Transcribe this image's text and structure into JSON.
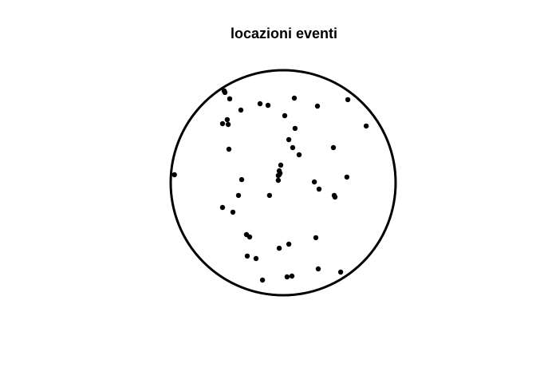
{
  "chart_data": {
    "type": "scatter",
    "title": "locazioni eventi",
    "xlabel": "",
    "ylabel": "",
    "grid": false,
    "axes": false,
    "window": {
      "shape": "circle",
      "center": [
        0,
        0
      ],
      "radius": 1
    },
    "xlim": [
      -1,
      1
    ],
    "ylim": [
      -1,
      1
    ],
    "point_color": "#000000",
    "outline_color": "#000000",
    "points": [
      {
        "x": -0.525,
        "y": 0.817
      },
      {
        "x": -0.518,
        "y": 0.803
      },
      {
        "x": -0.475,
        "y": 0.746
      },
      {
        "x": -0.376,
        "y": 0.646
      },
      {
        "x": -0.206,
        "y": 0.702
      },
      {
        "x": -0.135,
        "y": 0.688
      },
      {
        "x": 0.099,
        "y": 0.752
      },
      {
        "x": 0.305,
        "y": 0.681
      },
      {
        "x": 0.575,
        "y": 0.738
      },
      {
        "x": 0.738,
        "y": 0.504
      },
      {
        "x": -0.497,
        "y": 0.561
      },
      {
        "x": -0.539,
        "y": 0.525
      },
      {
        "x": -0.489,
        "y": 0.518
      },
      {
        "x": 0.014,
        "y": 0.596
      },
      {
        "x": 0.106,
        "y": 0.483
      },
      {
        "x": 0.05,
        "y": 0.383
      },
      {
        "x": 0.085,
        "y": 0.312
      },
      {
        "x": 0.142,
        "y": 0.248
      },
      {
        "x": 0.447,
        "y": 0.312
      },
      {
        "x": -0.482,
        "y": 0.298
      },
      {
        "x": -0.021,
        "y": 0.156
      },
      {
        "x": -0.035,
        "y": 0.106
      },
      {
        "x": -0.028,
        "y": 0.085
      },
      {
        "x": -0.043,
        "y": 0.064
      },
      {
        "x": -0.043,
        "y": 0.021
      },
      {
        "x": -0.035,
        "y": 0.071
      },
      {
        "x": -0.967,
        "y": 0.071
      },
      {
        "x": -0.369,
        "y": 0.028
      },
      {
        "x": 0.277,
        "y": 0.007
      },
      {
        "x": 0.567,
        "y": 0.05
      },
      {
        "x": 0.319,
        "y": -0.057
      },
      {
        "x": 0.454,
        "y": -0.113
      },
      {
        "x": 0.461,
        "y": -0.128
      },
      {
        "x": -0.397,
        "y": -0.113
      },
      {
        "x": -0.121,
        "y": -0.113
      },
      {
        "x": -0.539,
        "y": -0.22
      },
      {
        "x": -0.447,
        "y": -0.262
      },
      {
        "x": -0.326,
        "y": -0.461
      },
      {
        "x": -0.298,
        "y": -0.482
      },
      {
        "x": 0.291,
        "y": -0.489
      },
      {
        "x": 0.05,
        "y": -0.546
      },
      {
        "x": -0.035,
        "y": -0.582
      },
      {
        "x": -0.319,
        "y": -0.652
      },
      {
        "x": -0.241,
        "y": -0.674
      },
      {
        "x": 0.312,
        "y": -0.766
      },
      {
        "x": 0.511,
        "y": -0.794
      },
      {
        "x": 0.035,
        "y": -0.837
      },
      {
        "x": 0.078,
        "y": -0.83
      },
      {
        "x": -0.184,
        "y": -0.865
      }
    ]
  }
}
